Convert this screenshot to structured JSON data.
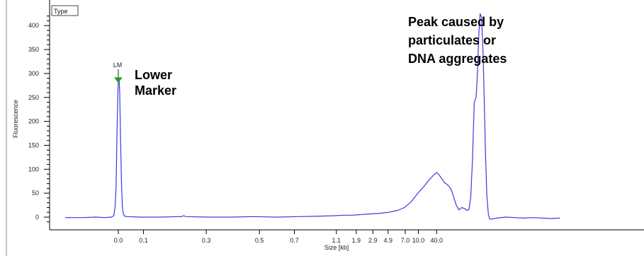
{
  "chart_data": {
    "type": "line",
    "xlabel": "Size [kb]",
    "ylabel": "Fluorescence",
    "ylim": [
      -18,
      425
    ],
    "y_ticks": [
      0,
      50,
      100,
      150,
      200,
      250,
      300,
      350,
      400
    ],
    "x_ticks": [
      {
        "label": "0.0",
        "t": 0.0
      },
      {
        "label": "0.1",
        "t": 0.0559
      },
      {
        "label": "0.3",
        "t": 0.1952
      },
      {
        "label": "0.5",
        "t": 0.3131
      },
      {
        "label": "0.7",
        "t": 0.3907
      },
      {
        "label": "1.1",
        "t": 0.4839
      },
      {
        "label": "1.9",
        "t": 0.528
      },
      {
        "label": "2.9",
        "t": 0.5648
      },
      {
        "label": "4.9",
        "t": 0.5987
      },
      {
        "label": "7.0",
        "t": 0.6368
      },
      {
        "label": "10.0",
        "t": 0.6659
      },
      {
        "label": "40.0",
        "t": 0.7064
      }
    ],
    "legend_label": "Type",
    "marker_label": "LM",
    "marker": {
      "t": 0.0,
      "y": 286
    },
    "annotations": [
      {
        "text_lines": [
          "Lower",
          "Marker"
        ]
      },
      {
        "text_lines": [
          "Peak caused by",
          "particulates or",
          "DNA aggregates"
        ]
      }
    ],
    "series": [
      {
        "color": "#3a3ae0",
        "points": [
          [
            -0.118,
            -1
          ],
          [
            -0.08,
            -1
          ],
          [
            -0.05,
            0
          ],
          [
            -0.03,
            -1
          ],
          [
            -0.015,
            0
          ],
          [
            -0.01,
            3
          ],
          [
            -0.007,
            22
          ],
          [
            -0.005,
            60
          ],
          [
            -0.003,
            170
          ],
          [
            -0.001,
            260
          ],
          [
            0.0,
            283
          ],
          [
            0.0015,
            290
          ],
          [
            0.003,
            262
          ],
          [
            0.005,
            160
          ],
          [
            0.007,
            70
          ],
          [
            0.009,
            22
          ],
          [
            0.011,
            7
          ],
          [
            0.014,
            2
          ],
          [
            0.02,
            1
          ],
          [
            0.05,
            0
          ],
          [
            0.09,
            0
          ],
          [
            0.14,
            1
          ],
          [
            0.145,
            3
          ],
          [
            0.15,
            1
          ],
          [
            0.2,
            0
          ],
          [
            0.25,
            0
          ],
          [
            0.3,
            1
          ],
          [
            0.35,
            0
          ],
          [
            0.4,
            1
          ],
          [
            0.45,
            2
          ],
          [
            0.48,
            3
          ],
          [
            0.5,
            4
          ],
          [
            0.52,
            4
          ],
          [
            0.55,
            6
          ],
          [
            0.58,
            8
          ],
          [
            0.6,
            10
          ],
          [
            0.62,
            14
          ],
          [
            0.635,
            20
          ],
          [
            0.65,
            32
          ],
          [
            0.665,
            50
          ],
          [
            0.68,
            66
          ],
          [
            0.69,
            78
          ],
          [
            0.7,
            88
          ],
          [
            0.707,
            93
          ],
          [
            0.712,
            88
          ],
          [
            0.718,
            80
          ],
          [
            0.724,
            72
          ],
          [
            0.73,
            68
          ],
          [
            0.736,
            62
          ],
          [
            0.74,
            55
          ],
          [
            0.745,
            40
          ],
          [
            0.75,
            25
          ],
          [
            0.756,
            15
          ],
          [
            0.762,
            20
          ],
          [
            0.768,
            18
          ],
          [
            0.774,
            14
          ],
          [
            0.778,
            16
          ],
          [
            0.782,
            40
          ],
          [
            0.786,
            120
          ],
          [
            0.79,
            240
          ],
          [
            0.794,
            250
          ],
          [
            0.797,
            300
          ],
          [
            0.8,
            380
          ],
          [
            0.803,
            425
          ],
          [
            0.806,
            418
          ],
          [
            0.809,
            360
          ],
          [
            0.812,
            250
          ],
          [
            0.815,
            130
          ],
          [
            0.818,
            45
          ],
          [
            0.821,
            8
          ],
          [
            0.824,
            -4
          ],
          [
            0.83,
            -4
          ],
          [
            0.84,
            -2
          ],
          [
            0.86,
            0
          ],
          [
            0.88,
            -1
          ],
          [
            0.9,
            -2
          ],
          [
            0.92,
            -1
          ],
          [
            0.94,
            -2
          ],
          [
            0.96,
            -3
          ],
          [
            0.98,
            -2
          ]
        ]
      }
    ]
  }
}
